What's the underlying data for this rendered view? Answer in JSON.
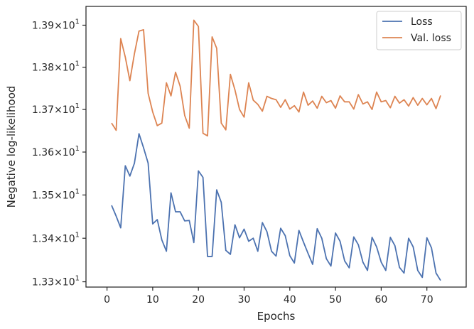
{
  "colors": {
    "loss": "#4c72b0",
    "val_loss": "#dd8452",
    "axes": "#262626",
    "legend_border": "#cccccc"
  },
  "chart_data": {
    "type": "line",
    "xlabel": "Epochs",
    "ylabel": "Negative log-likelihood",
    "xlim": [
      -4.6,
      78.6
    ],
    "ylim": [
      13.2879,
      13.945
    ],
    "y_scale": "log",
    "grid": false,
    "legend_position": "top-right",
    "x_ticks": [
      0,
      10,
      20,
      30,
      40,
      50,
      60,
      70
    ],
    "y_ticks": [
      {
        "value": 13.3,
        "base": "1.33",
        "exp": "1"
      },
      {
        "value": 13.4,
        "base": "1.34",
        "exp": "1"
      },
      {
        "value": 13.5,
        "base": "1.35",
        "exp": "1"
      },
      {
        "value": 13.6,
        "base": "1.36",
        "exp": "1"
      },
      {
        "value": 13.7,
        "base": "1.37",
        "exp": "1"
      },
      {
        "value": 13.8,
        "base": "1.38",
        "exp": "1"
      },
      {
        "value": 13.9,
        "base": "1.39",
        "exp": "1"
      }
    ],
    "x": [
      1,
      2,
      3,
      4,
      5,
      6,
      7,
      8,
      9,
      10,
      11,
      12,
      13,
      14,
      15,
      16,
      17,
      18,
      19,
      20,
      21,
      22,
      23,
      24,
      25,
      26,
      27,
      28,
      29,
      30,
      31,
      32,
      33,
      34,
      35,
      36,
      37,
      38,
      39,
      40,
      41,
      42,
      43,
      44,
      45,
      46,
      47,
      48,
      49,
      50,
      51,
      52,
      53,
      54,
      55,
      56,
      57,
      58,
      59,
      60,
      61,
      62,
      63,
      64,
      65,
      66,
      67,
      68,
      69,
      70,
      71,
      72,
      73
    ],
    "series": [
      {
        "name": "Loss",
        "values": [
          13.476,
          13.451,
          13.424,
          13.568,
          13.544,
          13.574,
          13.643,
          13.61,
          13.574,
          13.433,
          13.443,
          13.396,
          13.37,
          13.505,
          13.461,
          13.461,
          13.44,
          13.441,
          13.39,
          13.556,
          13.541,
          13.358,
          13.358,
          13.512,
          13.483,
          13.372,
          13.363,
          13.431,
          13.401,
          13.421,
          13.393,
          13.4,
          13.37,
          13.436,
          13.415,
          13.37,
          13.359,
          13.423,
          13.406,
          13.36,
          13.343,
          13.418,
          13.391,
          13.365,
          13.34,
          13.422,
          13.4,
          13.353,
          13.336,
          13.412,
          13.393,
          13.348,
          13.332,
          13.403,
          13.385,
          13.345,
          13.326,
          13.402,
          13.38,
          13.345,
          13.326,
          13.402,
          13.383,
          13.333,
          13.32,
          13.4,
          13.38,
          13.326,
          13.31,
          13.401,
          13.378,
          13.32,
          13.303
        ]
      },
      {
        "name": "Val. loss",
        "values": [
          13.668,
          13.651,
          13.868,
          13.824,
          13.768,
          13.832,
          13.886,
          13.889,
          13.738,
          13.694,
          13.662,
          13.668,
          13.763,
          13.732,
          13.788,
          13.755,
          13.686,
          13.656,
          13.912,
          13.897,
          13.644,
          13.638,
          13.872,
          13.845,
          13.668,
          13.652,
          13.783,
          13.746,
          13.7,
          13.682,
          13.763,
          13.722,
          13.712,
          13.696,
          13.731,
          13.726,
          13.723,
          13.705,
          13.723,
          13.701,
          13.709,
          13.694,
          13.741,
          13.71,
          13.72,
          13.703,
          13.731,
          13.716,
          13.721,
          13.703,
          13.732,
          13.718,
          13.718,
          13.701,
          13.735,
          13.713,
          13.718,
          13.7,
          13.741,
          13.718,
          13.721,
          13.704,
          13.731,
          13.715,
          13.723,
          13.708,
          13.728,
          13.71,
          13.726,
          13.711,
          13.726,
          13.702,
          13.733
        ]
      }
    ]
  }
}
